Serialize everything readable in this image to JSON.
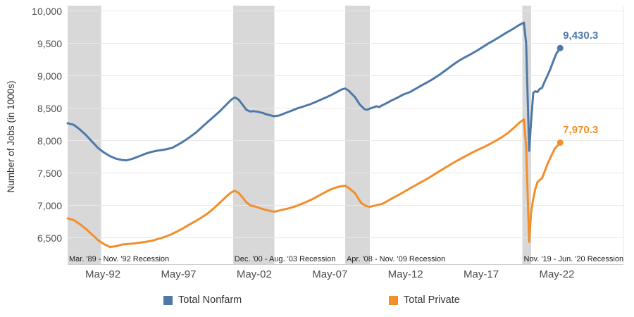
{
  "page": {
    "background": "#ffffff"
  },
  "chart_data": {
    "type": "line",
    "title": "",
    "ylabel": "Number of Jobs (in 1000s)",
    "xlabel": "",
    "grid": true,
    "legend_position": "bottom",
    "x_domain": [
      1990.0,
      2026.73
    ],
    "y_domain": [
      6095,
      10084
    ],
    "band_color": "#d8d8d8",
    "grid_color": "#e9e9e9",
    "axis_line_color": "#cfcfcf",
    "tick_label_color": "#4d4d4d",
    "recession_label_color": "#222222",
    "y_ticks": [
      {
        "v": 6500,
        "label": "6,500"
      },
      {
        "v": 7000,
        "label": "7,000"
      },
      {
        "v": 7500,
        "label": "7,500"
      },
      {
        "v": 8000,
        "label": "8,000"
      },
      {
        "v": 8500,
        "label": "8,500"
      },
      {
        "v": 9000,
        "label": "9,000"
      },
      {
        "v": 9500,
        "label": "9,500"
      },
      {
        "v": 10000,
        "label": "10,000"
      }
    ],
    "x_ticks": [
      {
        "t": 1992.33,
        "label": "May-92"
      },
      {
        "t": 1997.33,
        "label": "May-97"
      },
      {
        "t": 2002.33,
        "label": "May-02"
      },
      {
        "t": 2007.33,
        "label": "May-07"
      },
      {
        "t": 2012.33,
        "label": "May-12"
      },
      {
        "t": 2017.33,
        "label": "May-17"
      },
      {
        "t": 2022.33,
        "label": "May-22"
      }
    ],
    "recessions": [
      {
        "label": "Mar. '89 - Nov. '92 Recession",
        "start": 1990.0,
        "end": 1992.2
      },
      {
        "label": "Dec. '00 - Aug. '03 Recession",
        "start": 2000.93,
        "end": 2003.66
      },
      {
        "label": "Apr. '08 - Nov. '09 Recession",
        "start": 2008.34,
        "end": 2009.97
      },
      {
        "label": "Nov. '19 - Jun. '20 Recession",
        "start": 2020.05,
        "end": 2020.63
      }
    ],
    "series": [
      {
        "name": "Total Nonfarm",
        "color": "#4e79a7",
        "end_label": "9,430.3",
        "points": [
          [
            1990.0,
            8270
          ],
          [
            1990.4,
            8245
          ],
          [
            1990.8,
            8175
          ],
          [
            1991.2,
            8090
          ],
          [
            1991.6,
            7990
          ],
          [
            1992.0,
            7890
          ],
          [
            1992.4,
            7818
          ],
          [
            1992.8,
            7762
          ],
          [
            1993.2,
            7722
          ],
          [
            1993.6,
            7703
          ],
          [
            1993.9,
            7697
          ],
          [
            1994.3,
            7722
          ],
          [
            1994.7,
            7758
          ],
          [
            1995.1,
            7795
          ],
          [
            1995.5,
            7825
          ],
          [
            1995.9,
            7845
          ],
          [
            1996.4,
            7862
          ],
          [
            1996.9,
            7888
          ],
          [
            1997.3,
            7940
          ],
          [
            1997.7,
            7995
          ],
          [
            1998.1,
            8060
          ],
          [
            1998.5,
            8130
          ],
          [
            1998.9,
            8215
          ],
          [
            1999.3,
            8298
          ],
          [
            1999.7,
            8380
          ],
          [
            2000.1,
            8465
          ],
          [
            2000.5,
            8560
          ],
          [
            2000.8,
            8630
          ],
          [
            2001.05,
            8668
          ],
          [
            2001.3,
            8635
          ],
          [
            2001.55,
            8560
          ],
          [
            2001.8,
            8480
          ],
          [
            2002.05,
            8450
          ],
          [
            2002.3,
            8456
          ],
          [
            2002.6,
            8445
          ],
          [
            2002.9,
            8428
          ],
          [
            2003.2,
            8403
          ],
          [
            2003.65,
            8378
          ],
          [
            2004.0,
            8390
          ],
          [
            2004.4,
            8428
          ],
          [
            2004.8,
            8462
          ],
          [
            2005.2,
            8500
          ],
          [
            2005.6,
            8530
          ],
          [
            2006.0,
            8560
          ],
          [
            2006.5,
            8608
          ],
          [
            2007.0,
            8660
          ],
          [
            2007.4,
            8702
          ],
          [
            2007.8,
            8752
          ],
          [
            2008.1,
            8790
          ],
          [
            2008.35,
            8806
          ],
          [
            2008.6,
            8768
          ],
          [
            2008.8,
            8718
          ],
          [
            2009.0,
            8670
          ],
          [
            2009.3,
            8560
          ],
          [
            2009.6,
            8490
          ],
          [
            2009.8,
            8478
          ],
          [
            2010.0,
            8498
          ],
          [
            2010.2,
            8512
          ],
          [
            2010.4,
            8532
          ],
          [
            2010.6,
            8520
          ],
          [
            2010.8,
            8548
          ],
          [
            2011.0,
            8570
          ],
          [
            2011.4,
            8620
          ],
          [
            2011.8,
            8665
          ],
          [
            2012.2,
            8715
          ],
          [
            2012.6,
            8748
          ],
          [
            2013.0,
            8800
          ],
          [
            2013.4,
            8855
          ],
          [
            2013.8,
            8905
          ],
          [
            2014.2,
            8960
          ],
          [
            2014.6,
            9022
          ],
          [
            2015.0,
            9090
          ],
          [
            2015.4,
            9160
          ],
          [
            2015.8,
            9225
          ],
          [
            2016.2,
            9280
          ],
          [
            2016.6,
            9330
          ],
          [
            2017.0,
            9382
          ],
          [
            2017.4,
            9440
          ],
          [
            2017.8,
            9500
          ],
          [
            2018.2,
            9552
          ],
          [
            2018.6,
            9610
          ],
          [
            2019.0,
            9668
          ],
          [
            2019.4,
            9720
          ],
          [
            2019.8,
            9780
          ],
          [
            2020.15,
            9822
          ],
          [
            2020.3,
            9500
          ],
          [
            2020.5,
            7845
          ],
          [
            2020.62,
            8280
          ],
          [
            2020.77,
            8740
          ],
          [
            2020.9,
            8762
          ],
          [
            2021.05,
            8752
          ],
          [
            2021.2,
            8800
          ],
          [
            2021.35,
            8815
          ],
          [
            2021.5,
            8900
          ],
          [
            2021.7,
            9000
          ],
          [
            2021.9,
            9105
          ],
          [
            2022.1,
            9230
          ],
          [
            2022.3,
            9345
          ],
          [
            2022.55,
            9430.3
          ]
        ]
      },
      {
        "name": "Total Private",
        "color": "#f28e2b",
        "end_label": "7,970.3",
        "points": [
          [
            1990.0,
            6800
          ],
          [
            1990.4,
            6775
          ],
          [
            1990.8,
            6715
          ],
          [
            1991.2,
            6640
          ],
          [
            1991.6,
            6555
          ],
          [
            1992.0,
            6468
          ],
          [
            1992.4,
            6405
          ],
          [
            1992.8,
            6360
          ],
          [
            1993.2,
            6372
          ],
          [
            1993.6,
            6398
          ],
          [
            1994.0,
            6408
          ],
          [
            1994.4,
            6415
          ],
          [
            1994.8,
            6428
          ],
          [
            1995.2,
            6442
          ],
          [
            1995.6,
            6458
          ],
          [
            1996.0,
            6485
          ],
          [
            1996.4,
            6515
          ],
          [
            1996.8,
            6550
          ],
          [
            1997.2,
            6595
          ],
          [
            1997.6,
            6645
          ],
          [
            1998.0,
            6700
          ],
          [
            1998.4,
            6752
          ],
          [
            1998.8,
            6808
          ],
          [
            1999.2,
            6868
          ],
          [
            1999.6,
            6945
          ],
          [
            2000.0,
            7030
          ],
          [
            2000.4,
            7120
          ],
          [
            2000.8,
            7202
          ],
          [
            2001.05,
            7228
          ],
          [
            2001.3,
            7195
          ],
          [
            2001.55,
            7128
          ],
          [
            2001.8,
            7050
          ],
          [
            2002.1,
            6998
          ],
          [
            2002.4,
            6985
          ],
          [
            2002.7,
            6960
          ],
          [
            2003.0,
            6938
          ],
          [
            2003.4,
            6915
          ],
          [
            2003.7,
            6905
          ],
          [
            2004.1,
            6930
          ],
          [
            2004.5,
            6950
          ],
          [
            2004.9,
            6975
          ],
          [
            2005.3,
            7010
          ],
          [
            2005.7,
            7048
          ],
          [
            2006.1,
            7090
          ],
          [
            2006.5,
            7140
          ],
          [
            2006.9,
            7190
          ],
          [
            2007.3,
            7240
          ],
          [
            2007.7,
            7275
          ],
          [
            2008.0,
            7295
          ],
          [
            2008.35,
            7305
          ],
          [
            2008.6,
            7268
          ],
          [
            2009.0,
            7190
          ],
          [
            2009.4,
            7040
          ],
          [
            2009.7,
            6995
          ],
          [
            2009.95,
            6980
          ],
          [
            2010.35,
            7000
          ],
          [
            2010.8,
            7026
          ],
          [
            2011.1,
            7065
          ],
          [
            2011.5,
            7118
          ],
          [
            2011.9,
            7168
          ],
          [
            2012.3,
            7220
          ],
          [
            2012.7,
            7275
          ],
          [
            2013.1,
            7326
          ],
          [
            2013.5,
            7378
          ],
          [
            2013.9,
            7432
          ],
          [
            2014.3,
            7490
          ],
          [
            2014.7,
            7548
          ],
          [
            2015.1,
            7605
          ],
          [
            2015.5,
            7660
          ],
          [
            2015.9,
            7712
          ],
          [
            2016.3,
            7762
          ],
          [
            2016.7,
            7812
          ],
          [
            2017.1,
            7858
          ],
          [
            2017.5,
            7900
          ],
          [
            2017.9,
            7948
          ],
          [
            2018.3,
            8000
          ],
          [
            2018.7,
            8055
          ],
          [
            2019.1,
            8120
          ],
          [
            2019.5,
            8200
          ],
          [
            2019.8,
            8268
          ],
          [
            2020.15,
            8330
          ],
          [
            2020.3,
            7900
          ],
          [
            2020.5,
            6440
          ],
          [
            2020.62,
            6880
          ],
          [
            2020.75,
            7080
          ],
          [
            2020.9,
            7250
          ],
          [
            2021.05,
            7360
          ],
          [
            2021.2,
            7395
          ],
          [
            2021.35,
            7420
          ],
          [
            2021.55,
            7540
          ],
          [
            2021.75,
            7660
          ],
          [
            2021.95,
            7760
          ],
          [
            2022.2,
            7880
          ],
          [
            2022.4,
            7930
          ],
          [
            2022.55,
            7970.3
          ]
        ]
      }
    ]
  }
}
